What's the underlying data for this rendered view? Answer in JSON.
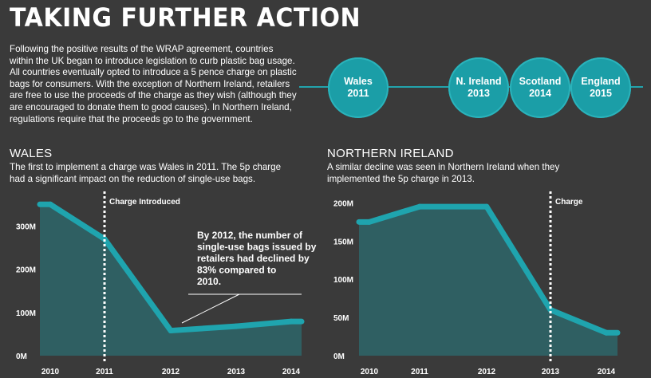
{
  "header": {
    "title": "TAKING FURTHER ACTION",
    "intro": "Following the positive results of the WRAP agreement, countries within the UK began to introduce legislation to curb plastic bag usage. All countries eventually opted to introduce a 5 pence charge on plastic bags for consumers. With the exception of Northern Ireland, retailers are free to use the proceeds of the charge as they wish (although they are encouraged to donate them to good causes). In Northern Ireland, regulations require that the proceeds go to the government."
  },
  "timeline": [
    {
      "name": "Wales",
      "year": "2011"
    },
    {
      "name": "N. Ireland",
      "year": "2013"
    },
    {
      "name": "Scotland",
      "year": "2014"
    },
    {
      "name": "England",
      "year": "2015"
    }
  ],
  "colors": {
    "background": "#3a3a3a",
    "line": "#1fa4ae",
    "area": "#2f5f62",
    "circle": "#1b9ea7"
  },
  "wales": {
    "heading": "WALES",
    "description": "The first to implement a charge was Wales in 2011. The 5p charge had a significant impact on the reduction of single-use bags.",
    "annotation": "By 2012, the number of single-use bags issued by retailers had declined by 83% compared to 2010."
  },
  "ni": {
    "heading": "NORTHERN IRELAND",
    "description": "A similar decline was seen in Northern Ireland when they implemented the 5p charge in 2013."
  },
  "chart_data": [
    {
      "type": "area",
      "title": "WALES",
      "x": [
        "2010",
        "2011",
        "2012",
        "2013",
        "2014"
      ],
      "values": [
        350,
        270,
        58,
        68,
        79
      ],
      "unit": "M",
      "yticks": [
        "0M",
        "100M",
        "200M",
        "300M"
      ],
      "ytick_values": [
        0,
        100,
        200,
        300
      ],
      "ylim": [
        0,
        380
      ],
      "marker": {
        "x": "2011",
        "label": "Charge Introduced"
      }
    },
    {
      "type": "area",
      "title": "NORTHERN IRELAND",
      "x": [
        "2010",
        "2011",
        "2012",
        "2013",
        "2014"
      ],
      "values": [
        175,
        195,
        195,
        60,
        30
      ],
      "unit": "M",
      "yticks": [
        "0M",
        "50M",
        "100M",
        "150M",
        "200M"
      ],
      "ytick_values": [
        0,
        50,
        100,
        150,
        200
      ],
      "ylim": [
        0,
        215
      ],
      "marker": {
        "x": "2013",
        "label": "Charge"
      }
    }
  ]
}
